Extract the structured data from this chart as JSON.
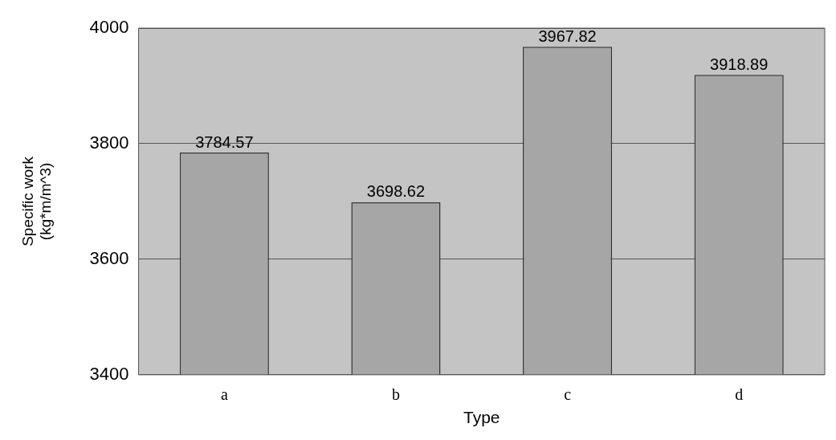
{
  "chart_data": {
    "type": "bar",
    "xlabel": "Type",
    "ylabel": "Specific work\n(kg*m/m^3)",
    "categories": [
      "a",
      "b",
      "c",
      "d"
    ],
    "values": [
      3784.57,
      3698.62,
      3967.82,
      3918.89
    ],
    "color": "#a6a6a6",
    "ylim": [
      3400,
      4000
    ],
    "yticks": [
      3400,
      3600,
      3800,
      4000
    ],
    "grid": "y",
    "data_labels": true
  }
}
